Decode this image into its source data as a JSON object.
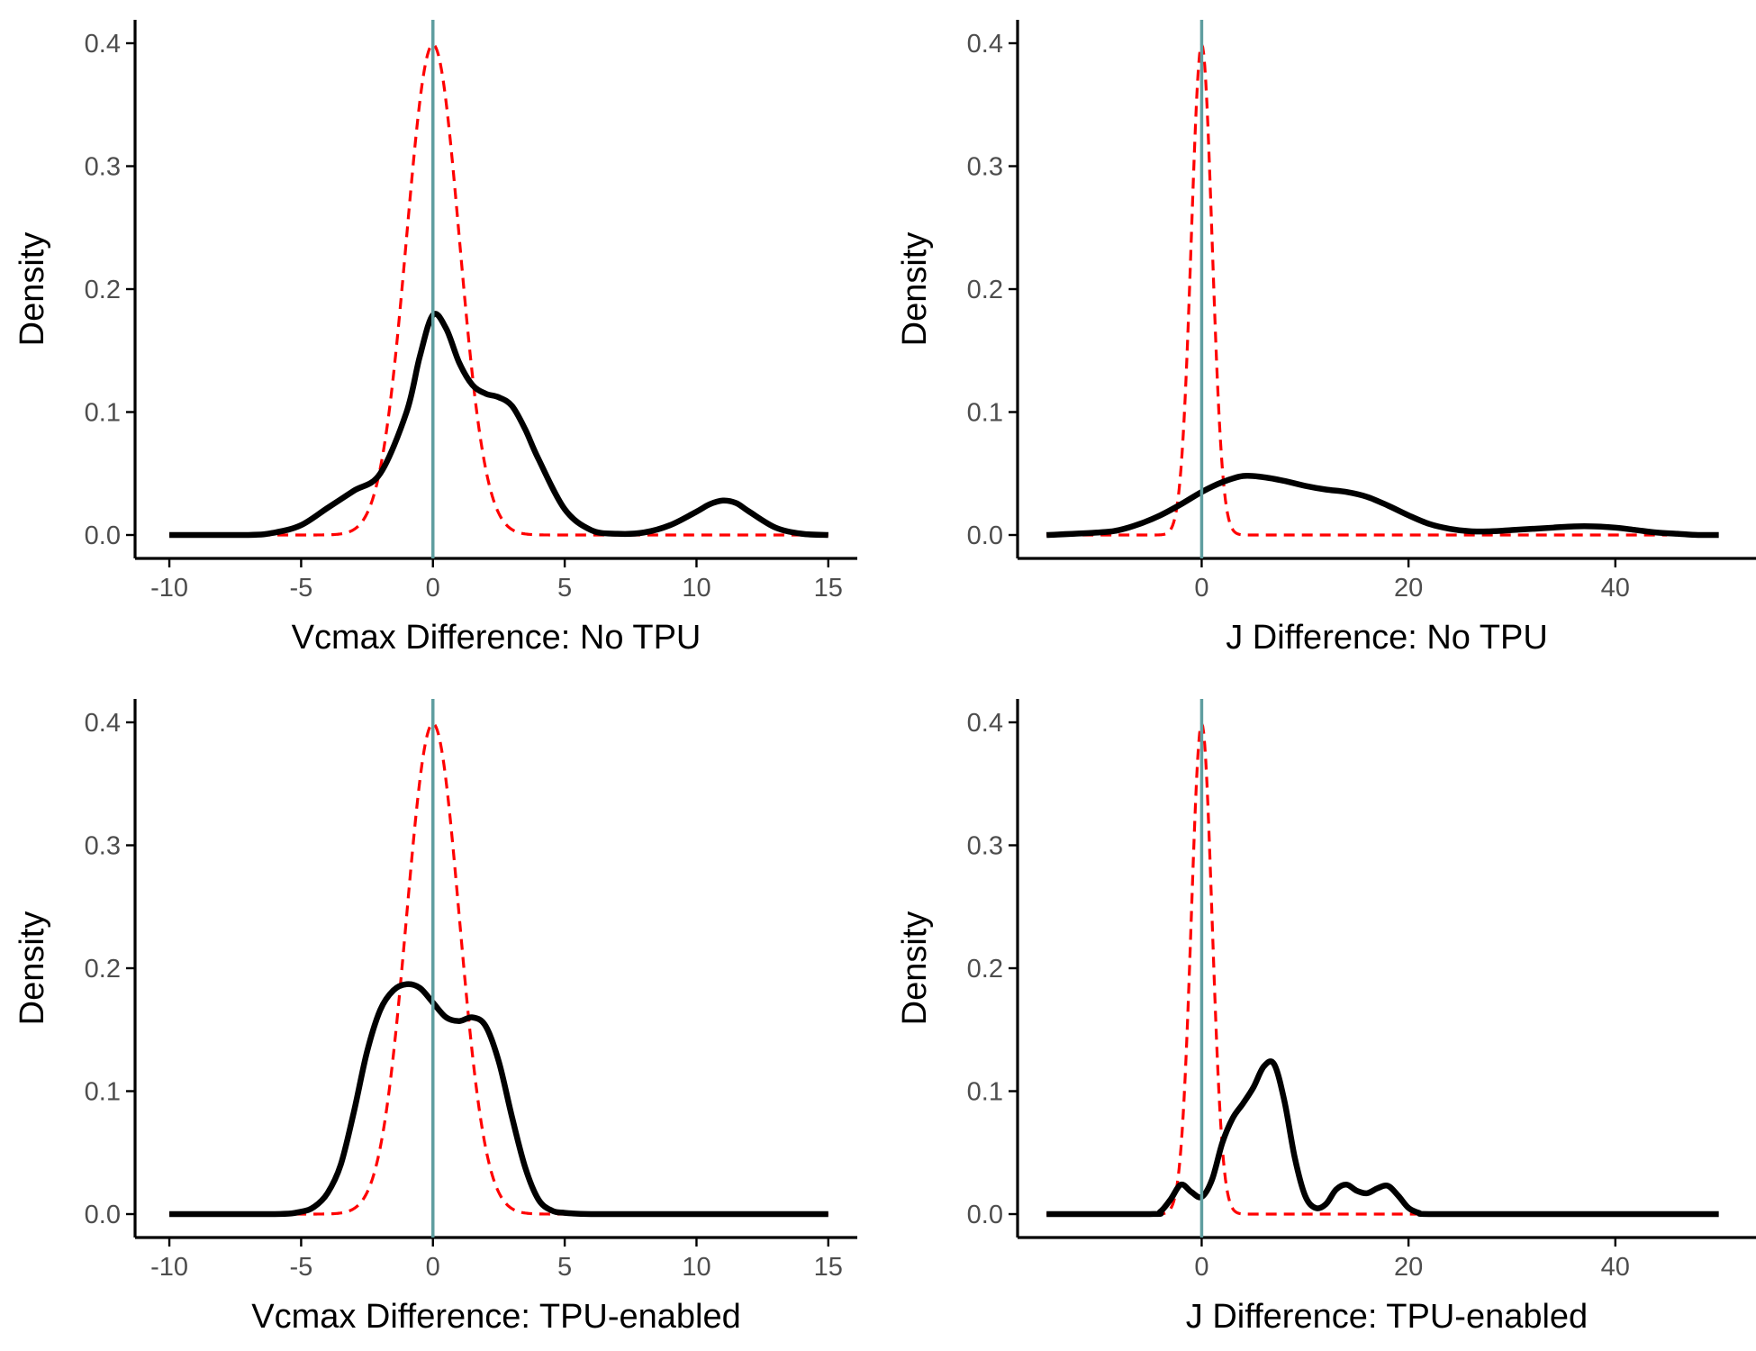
{
  "figure": {
    "title": "",
    "colors": {
      "density_line": "#000000",
      "normal_reference": "#ff0000",
      "zero_line": "#5f9ea0",
      "tick_text": "#4d4d4d"
    }
  },
  "chart_data": [
    {
      "type": "line",
      "title": "",
      "xlabel": "Vcmax Difference: No TPU",
      "ylabel": "Density",
      "xlim": [
        -10,
        15
      ],
      "ylim": [
        0,
        0.4
      ],
      "xticks": [
        -10,
        -5,
        0,
        5,
        10,
        15
      ],
      "xtick_labels": [
        "-10",
        "-5",
        "0",
        "5",
        "10",
        "15"
      ],
      "yticks": [
        0,
        0.1,
        0.2,
        0.3,
        0.4
      ],
      "ytick_labels": [
        "0.0",
        "0.1",
        "0.2",
        "0.3",
        "0.4"
      ],
      "grid": false,
      "vline_x": 0,
      "normal_reference": {
        "mean": 0,
        "sd": 1,
        "x_range": [
          -10,
          15
        ]
      },
      "series": [
        {
          "style": "solid",
          "x": [
            -10,
            -7,
            -6,
            -5,
            -4,
            -3,
            -2,
            -1,
            -0.5,
            0,
            0.5,
            1,
            1.5,
            2,
            2.5,
            3,
            3.5,
            4,
            5,
            6,
            7,
            8,
            9,
            10,
            10.5,
            11,
            11.5,
            12,
            13,
            14,
            15
          ],
          "y": [
            0,
            0,
            0.002,
            0.008,
            0.022,
            0.036,
            0.05,
            0.1,
            0.145,
            0.179,
            0.168,
            0.14,
            0.122,
            0.115,
            0.112,
            0.105,
            0.086,
            0.062,
            0.021,
            0.004,
            0.001,
            0.002,
            0.008,
            0.019,
            0.025,
            0.028,
            0.026,
            0.019,
            0.006,
            0.001,
            0
          ]
        }
      ]
    },
    {
      "type": "line",
      "title": "",
      "xlabel": "J Difference: No TPU",
      "ylabel": "Density",
      "xlim": [
        -15,
        50
      ],
      "ylim": [
        0,
        0.4
      ],
      "xticks": [
        0,
        20,
        40
      ],
      "xtick_labels": [
        "0",
        "20",
        "40"
      ],
      "yticks": [
        0,
        0.1,
        0.2,
        0.3,
        0.4
      ],
      "ytick_labels": [
        "0.0",
        "0.1",
        "0.2",
        "0.3",
        "0.4"
      ],
      "grid": false,
      "vline_x": 0,
      "normal_reference": {
        "mean": 0,
        "sd": 1,
        "x_range": [
          -15,
          45
        ]
      },
      "series": [
        {
          "style": "solid",
          "x": [
            -15,
            -10,
            -8,
            -6,
            -4,
            -2,
            0,
            2,
            4,
            6,
            8,
            10,
            12,
            14,
            16,
            18,
            20,
            22,
            24,
            26,
            28,
            30,
            32,
            34,
            36,
            38,
            40,
            42,
            44,
            46,
            48,
            50
          ],
          "y": [
            0,
            0.002,
            0.004,
            0.009,
            0.016,
            0.025,
            0.035,
            0.043,
            0.048,
            0.047,
            0.044,
            0.04,
            0.037,
            0.035,
            0.031,
            0.024,
            0.016,
            0.009,
            0.005,
            0.003,
            0.003,
            0.004,
            0.005,
            0.006,
            0.007,
            0.007,
            0.006,
            0.004,
            0.002,
            0.001,
            0,
            0
          ]
        }
      ]
    },
    {
      "type": "line",
      "title": "",
      "xlabel": "Vcmax Difference: TPU-enabled",
      "ylabel": "Density",
      "xlim": [
        -10,
        15
      ],
      "ylim": [
        0,
        0.4
      ],
      "xticks": [
        -10,
        -5,
        0,
        5,
        10,
        15
      ],
      "xtick_labels": [
        "-10",
        "-5",
        "0",
        "5",
        "10",
        "15"
      ],
      "yticks": [
        0,
        0.1,
        0.2,
        0.3,
        0.4
      ],
      "ytick_labels": [
        "0.0",
        "0.1",
        "0.2",
        "0.3",
        "0.4"
      ],
      "grid": false,
      "vline_x": 0,
      "normal_reference": {
        "mean": 0,
        "sd": 1,
        "x_range": [
          -10,
          15
        ]
      },
      "series": [
        {
          "style": "solid",
          "x": [
            -10,
            -6,
            -5,
            -4.5,
            -4,
            -3.5,
            -3,
            -2.5,
            -2,
            -1.5,
            -1,
            -0.5,
            0,
            0.5,
            1,
            1.5,
            2,
            2.5,
            3,
            3.5,
            4,
            4.5,
            5,
            6,
            8,
            10,
            15
          ],
          "y": [
            0,
            0,
            0.002,
            0.006,
            0.017,
            0.04,
            0.083,
            0.132,
            0.166,
            0.182,
            0.187,
            0.184,
            0.172,
            0.16,
            0.157,
            0.16,
            0.153,
            0.124,
            0.079,
            0.038,
            0.012,
            0.003,
            0.001,
            0,
            0,
            0,
            0
          ]
        }
      ]
    },
    {
      "type": "line",
      "title": "",
      "xlabel": "J Difference: TPU-enabled",
      "ylabel": "Density",
      "xlim": [
        -15,
        50
      ],
      "ylim": [
        0,
        0.4
      ],
      "xticks": [
        0,
        20,
        40
      ],
      "xtick_labels": [
        "0",
        "20",
        "40"
      ],
      "yticks": [
        0,
        0.1,
        0.2,
        0.3,
        0.4
      ],
      "ytick_labels": [
        "0.0",
        "0.1",
        "0.2",
        "0.3",
        "0.4"
      ],
      "grid": false,
      "vline_x": 0,
      "normal_reference": {
        "mean": 0,
        "sd": 1,
        "x_range": [
          -15,
          45
        ]
      },
      "series": [
        {
          "style": "solid",
          "x": [
            -15,
            -5,
            -4,
            -3,
            -2,
            -1,
            0,
            1,
            2,
            3,
            4,
            5,
            6,
            7,
            8,
            9,
            10,
            11,
            12,
            13,
            14,
            15,
            16,
            17,
            18,
            19,
            20,
            21,
            22,
            30,
            40,
            50
          ],
          "y": [
            0,
            0,
            0.002,
            0.012,
            0.024,
            0.018,
            0.014,
            0.028,
            0.058,
            0.078,
            0.09,
            0.103,
            0.12,
            0.122,
            0.092,
            0.046,
            0.015,
            0.005,
            0.008,
            0.02,
            0.024,
            0.019,
            0.017,
            0.021,
            0.023,
            0.015,
            0.005,
            0.001,
            0,
            0,
            0,
            0
          ]
        }
      ]
    }
  ]
}
